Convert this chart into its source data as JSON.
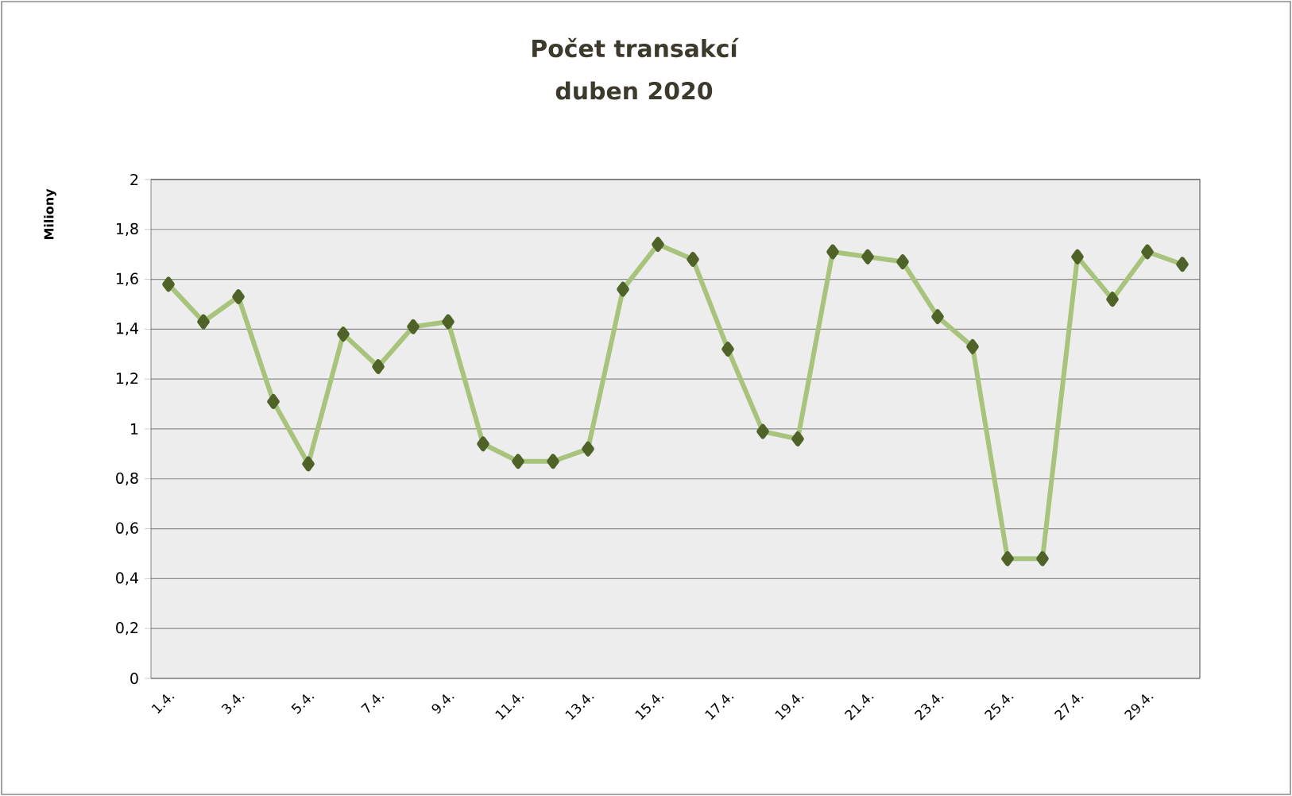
{
  "chart_data": {
    "type": "line",
    "title": "Počet transakcí",
    "subtitle": "duben 2020",
    "ylabel": "Miliony",
    "categories": [
      "1.4.",
      null,
      "3.4.",
      null,
      "5.4.",
      null,
      "7.4.",
      null,
      "9.4.",
      null,
      "11.4.",
      null,
      "13.4.",
      null,
      "15.4.",
      null,
      "17.4.",
      null,
      "19.4.",
      null,
      "21.4.",
      null,
      "23.4.",
      null,
      "25.4.",
      null,
      "27.4.",
      null,
      "29.4.",
      null
    ],
    "series": [
      {
        "color": "#a8c47c",
        "values": [
          1.58,
          1.43,
          1.53,
          1.11,
          0.86,
          1.38,
          1.25,
          1.41,
          1.43,
          0.94,
          0.87,
          0.87,
          0.92,
          1.56,
          1.74,
          1.68,
          1.32,
          0.99,
          0.96,
          1.71,
          1.69,
          1.67,
          1.45,
          1.33,
          0.48,
          0.48,
          1.69,
          1.52,
          1.71,
          1.66
        ]
      }
    ],
    "ylim": [
      0,
      2
    ],
    "yticks": [
      0,
      {
        "value": 0.2,
        "label": "0,2"
      },
      {
        "value": 0.4,
        "label": "0,4"
      },
      {
        "value": 0.6,
        "label": "0,6"
      },
      {
        "value": 0.8,
        "label": "0,8"
      },
      1,
      {
        "value": 1.2,
        "label": "1,2"
      },
      {
        "value": 1.4,
        "label": "1,4"
      },
      {
        "value": 1.6,
        "label": "1,6"
      },
      {
        "value": 1.8,
        "label": "1,8"
      },
      2
    ],
    "grid": "y",
    "marker": "diamond",
    "line_style": "solid"
  }
}
